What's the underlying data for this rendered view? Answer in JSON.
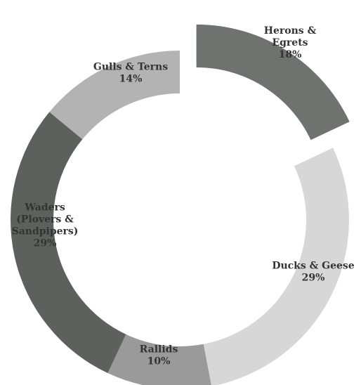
{
  "chart_data": {
    "type": "pie",
    "donut": true,
    "legend": "none",
    "slices": [
      {
        "name": "Herons & Egrets",
        "label_lines": [
          "Herons &",
          "Egrets"
        ],
        "value_label": "18%",
        "value": 18,
        "color": "#6e736f",
        "exploded": true
      },
      {
        "name": "Ducks & Geese",
        "label_lines": [
          "Ducks & Geese"
        ],
        "value_label": "29%",
        "value": 29,
        "color": "#d7d7d7",
        "exploded": false
      },
      {
        "name": "Rallids",
        "label_lines": [
          "Rallids"
        ],
        "value_label": "10%",
        "value": 10,
        "color": "#9a9a9a",
        "exploded": false
      },
      {
        "name": "Waders (Plovers & Sandpipers)",
        "label_lines": [
          "Waders",
          "(Plovers &",
          "Sandpipers)"
        ],
        "value_label": "29%",
        "value": 29,
        "color": "#5c615d",
        "exploded": false
      },
      {
        "name": "Gulls & Terns",
        "label_lines": [
          "Gulls & Terns"
        ],
        "value_label": "14%",
        "value": 14,
        "color": "#b3b3b3",
        "exploded": false
      }
    ]
  }
}
